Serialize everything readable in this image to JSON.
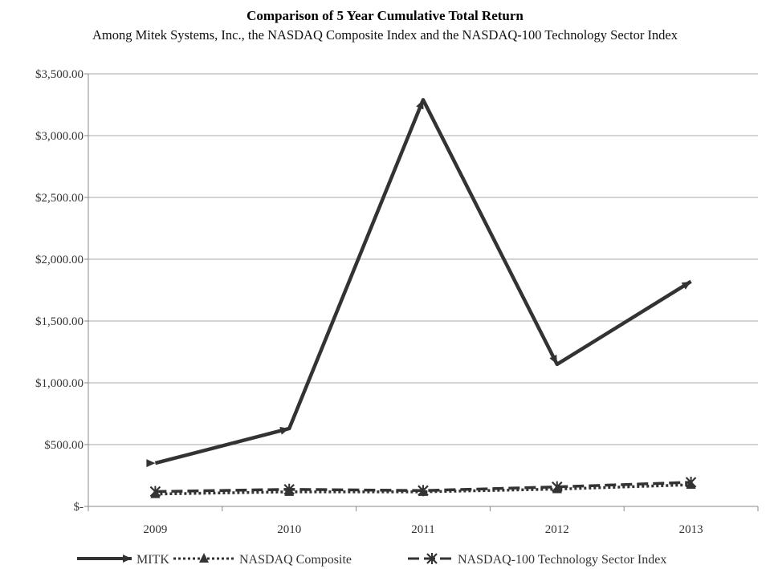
{
  "chart_data": {
    "type": "line",
    "title": "Comparison of 5 Year Cumulative Total Return",
    "subtitle": "Among Mitek Systems, Inc., the NASDAQ Composite Index and the NASDAQ-100 Technology Sector Index",
    "categories": [
      "2009",
      "2010",
      "2011",
      "2012",
      "2013"
    ],
    "ylim": [
      0,
      3500
    ],
    "yticks": [
      {
        "value": 0,
        "label": "$-"
      },
      {
        "value": 500,
        "label": "$500.00"
      },
      {
        "value": 1000,
        "label": "$1,000.00"
      },
      {
        "value": 1500,
        "label": "$1,500.00"
      },
      {
        "value": 2000,
        "label": "$2,000.00"
      },
      {
        "value": 2500,
        "label": "$2,500.00"
      },
      {
        "value": 3000,
        "label": "$3,000.00"
      },
      {
        "value": 3500,
        "label": "$3,500.00"
      }
    ],
    "grid": true,
    "legend_position": "bottom",
    "series": [
      {
        "name": "MITK",
        "values": [
          350,
          630,
          3290,
          1150,
          1820
        ],
        "color": "#333333",
        "style": "solid",
        "marker": "arrow"
      },
      {
        "name": "NASDAQ Composite",
        "values": [
          100,
          118,
          118,
          140,
          175
        ],
        "color": "#333333",
        "style": "dotted",
        "marker": "triangle"
      },
      {
        "name": "NASDAQ-100 Technology Sector Index",
        "values": [
          120,
          138,
          128,
          158,
          195
        ],
        "color": "#333333",
        "style": "dashed",
        "marker": "star"
      }
    ]
  }
}
